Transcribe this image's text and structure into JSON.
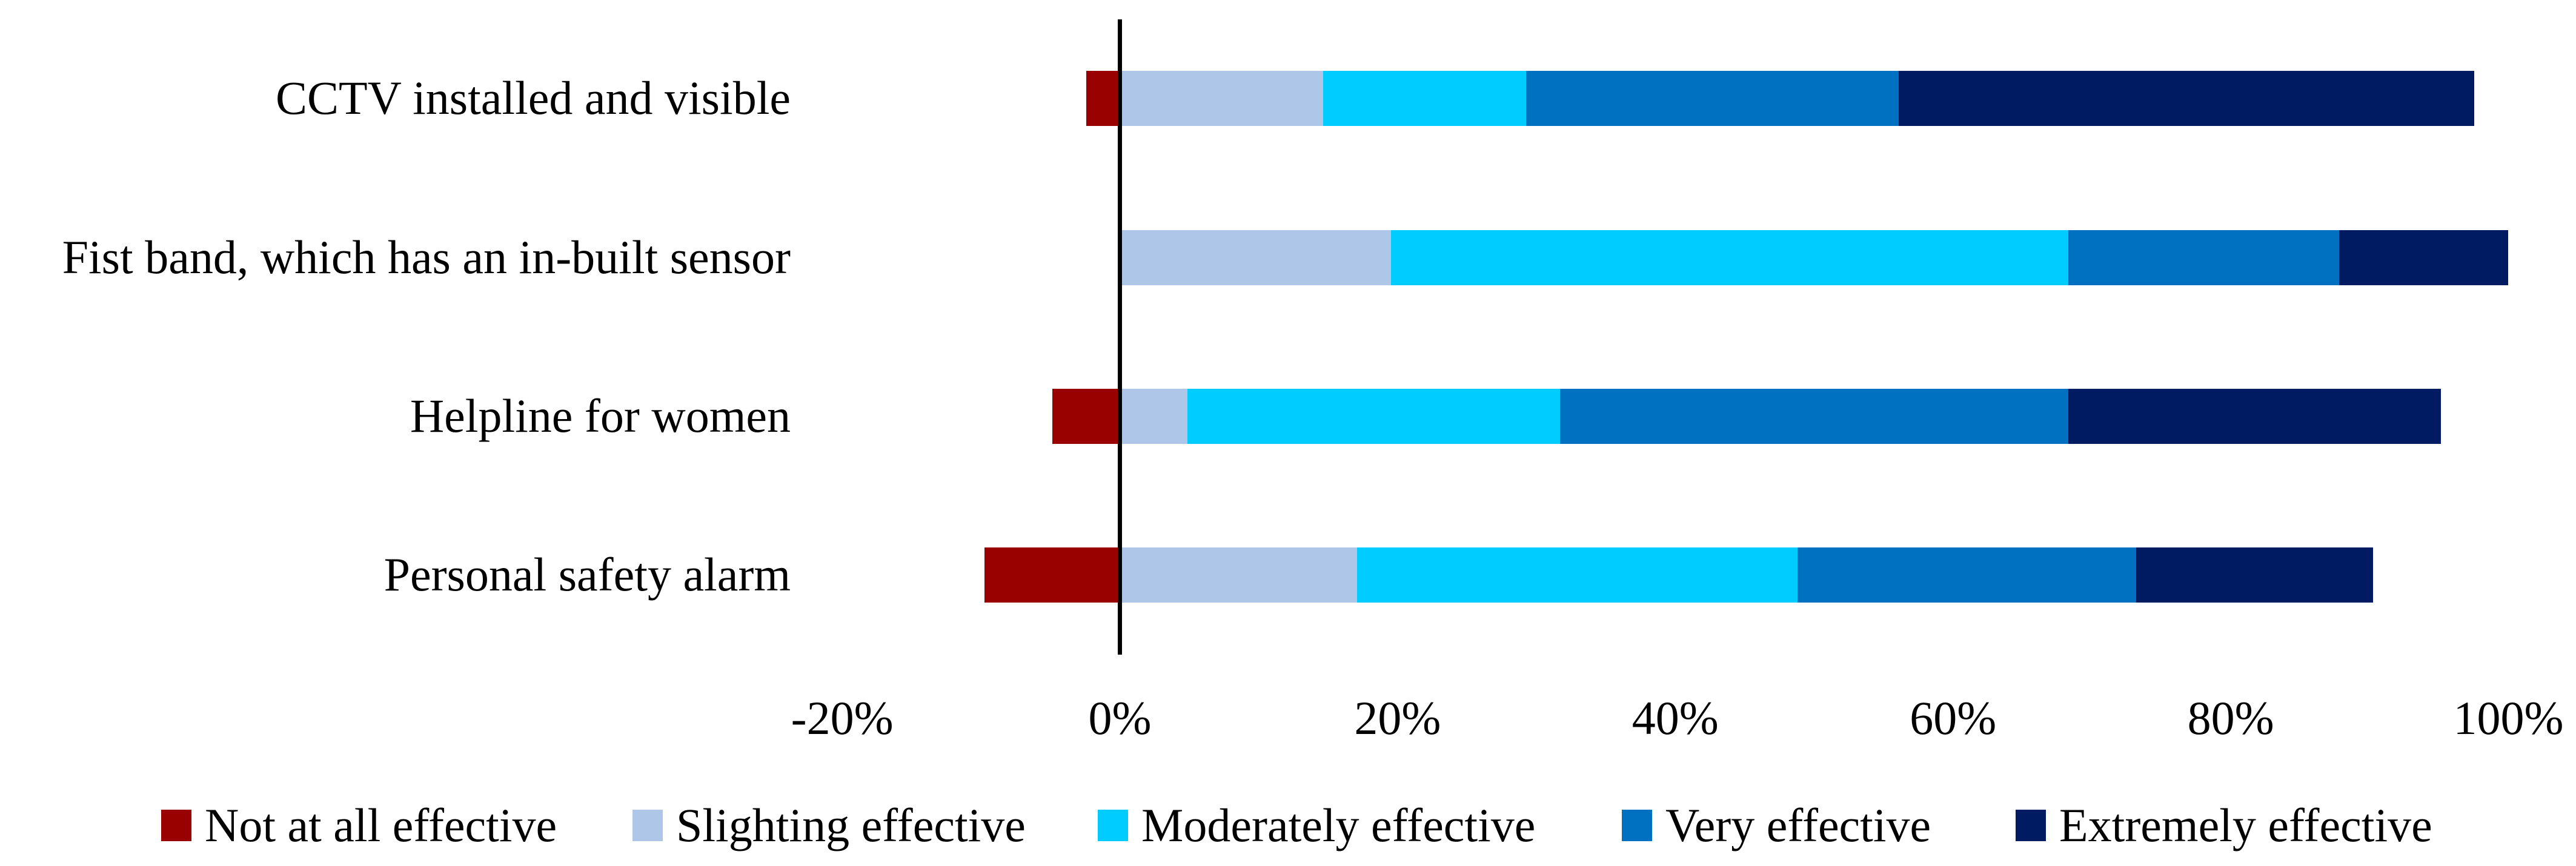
{
  "chart_data": {
    "type": "bar",
    "orientation": "horizontal",
    "stacked": true,
    "diverging": true,
    "title": "",
    "xlabel": "",
    "ylabel": "",
    "grid": false,
    "legend_position": "bottom",
    "axis_line_color": "#000000",
    "categories": [
      "CCTV installed and visible",
      "Fist band, which has an in-built sensor",
      "Helpline for women",
      "Personal safety alarm"
    ],
    "series": [
      {
        "name": "Not at all effective",
        "color": "#990000",
        "values": [
          -2.44,
          0,
          -4.88,
          -9.76
        ]
      },
      {
        "name": "Slighting effective",
        "color": "#AEC7E8",
        "values": [
          14.63,
          19.51,
          4.88,
          17.07
        ]
      },
      {
        "name": "Moderately effective",
        "color": "#00CCFF",
        "values": [
          14.63,
          48.78,
          26.83,
          31.71
        ]
      },
      {
        "name": "Very effective",
        "color": "#0070C0",
        "values": [
          26.83,
          19.51,
          36.59,
          24.39
        ]
      },
      {
        "name": "Extremely effective",
        "color": "#001B62",
        "values": [
          41.46,
          12.2,
          26.83,
          17.07
        ]
      }
    ],
    "x_axis": {
      "unit": "%",
      "xlim": [
        -20,
        105
      ],
      "tick_values": [
        -20,
        0,
        20,
        40,
        60,
        80,
        100
      ],
      "tick_labels": [
        "-20%",
        "0%",
        "20%",
        "40%",
        "60%",
        "80%",
        "100%"
      ]
    }
  }
}
